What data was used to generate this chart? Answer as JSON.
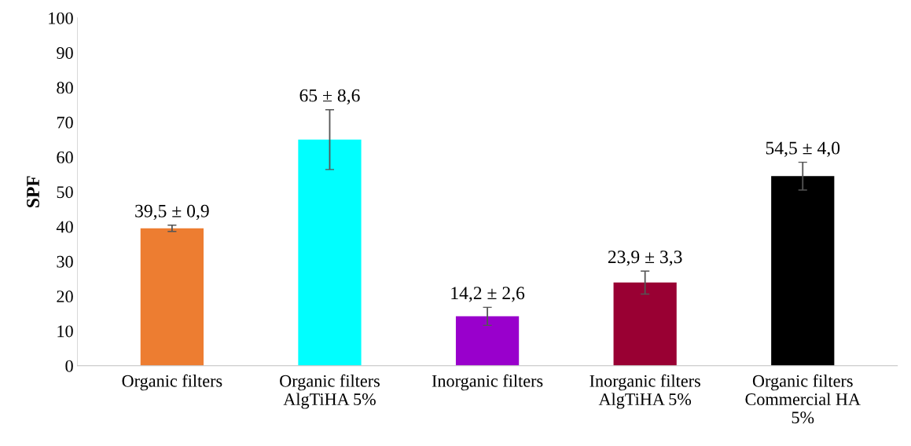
{
  "chart_data": {
    "type": "bar",
    "ylabel": "SPF",
    "categories": [
      "Organic filters",
      "Organic filters\nAlgTiHA 5%",
      "Inorganic filters",
      "Inorganic filters\nAlgTiHA 5%",
      "Organic filters\nCommercial HA\n5%"
    ],
    "values": [
      39.5,
      65,
      14.2,
      23.9,
      54.5
    ],
    "errors": [
      0.9,
      8.6,
      2.6,
      3.3,
      4.0
    ],
    "value_labels": [
      "39,5 ± 0,9",
      "65 ± 8,6",
      "14,2 ± 2,6",
      "23,9 ± 3,3",
      "54,5 ± 4,0"
    ],
    "colors": [
      "#ed7d31",
      "#00ffff",
      "#9900cc",
      "#990033",
      "#000000"
    ],
    "ylim": [
      0,
      100
    ],
    "yticks": [
      0,
      10,
      20,
      30,
      40,
      50,
      60,
      70,
      80,
      90,
      100
    ],
    "grid": false,
    "legend": false
  }
}
